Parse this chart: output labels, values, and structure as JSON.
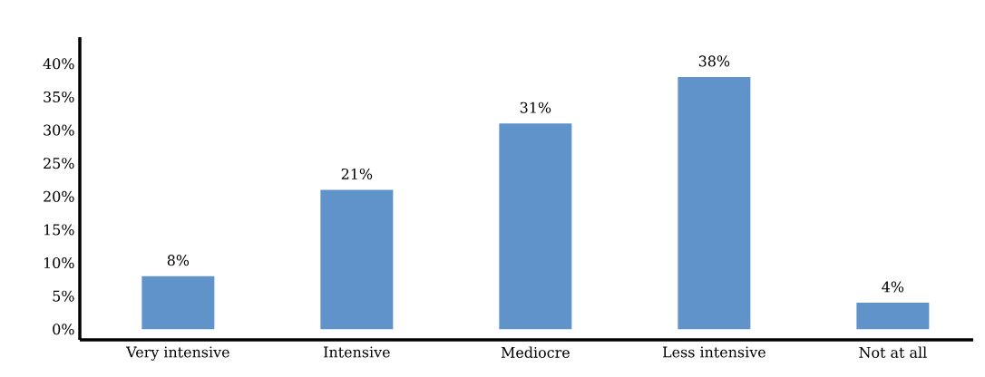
{
  "chart_data": {
    "type": "bar",
    "categories": [
      "Very intensive",
      "Intensive",
      "Mediocre",
      "Less intensive",
      "Not at all"
    ],
    "values": [
      8,
      21,
      31,
      38,
      4
    ],
    "value_labels": [
      "8%",
      "21%",
      "31%",
      "38%",
      "4%"
    ],
    "color": "#5f93c9",
    "ylim": [
      -1.6,
      44
    ],
    "yticks": [
      {
        "value": 0,
        "label": "0%"
      },
      {
        "value": 5,
        "label": "5%"
      },
      {
        "value": 10,
        "label": "10%"
      },
      {
        "value": 15,
        "label": "15%"
      },
      {
        "value": 20,
        "label": "20%"
      },
      {
        "value": 25,
        "label": "25%"
      },
      {
        "value": 30,
        "label": "30%"
      },
      {
        "value": 35,
        "label": "35%"
      },
      {
        "value": 40,
        "label": "40%"
      }
    ]
  }
}
